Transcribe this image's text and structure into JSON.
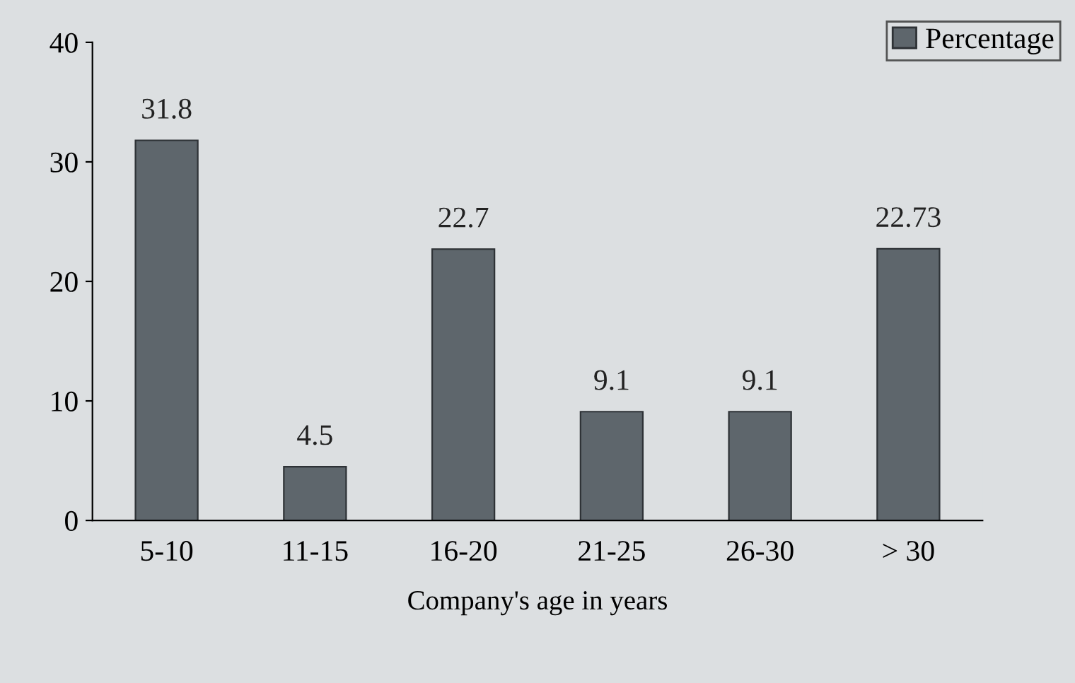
{
  "chart_data": {
    "type": "bar",
    "xlabel": "Company's age in years",
    "categories": [
      "5-10",
      "11-15",
      "16-20",
      "21-25",
      "26-30",
      "> 30"
    ],
    "series": [
      {
        "name": "Percentage",
        "color": "#5e666c",
        "values": [
          31.8,
          4.5,
          22.7,
          9.1,
          9.1,
          22.73
        ]
      }
    ],
    "ylim": [
      0,
      40
    ],
    "yticks": [
      0,
      10,
      20,
      30,
      40
    ],
    "grid": false,
    "legend": "top right",
    "data_labels": true
  }
}
